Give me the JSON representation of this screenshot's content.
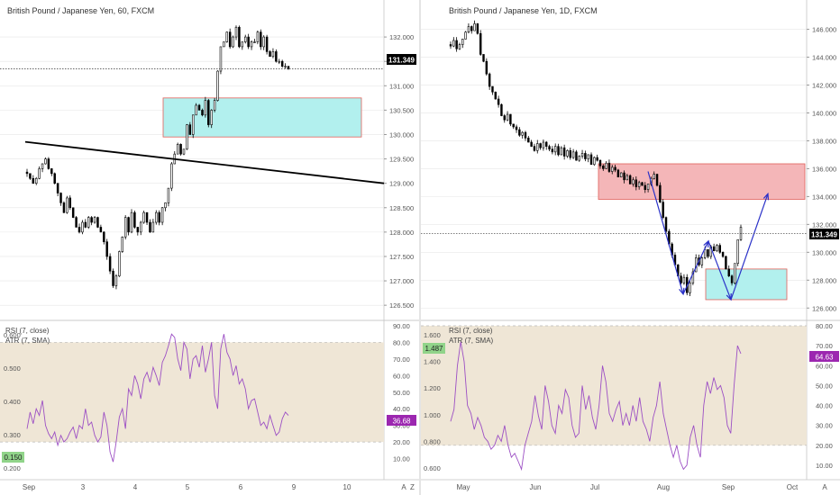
{
  "colors": {
    "candle_up": "#ffffff",
    "candle_down": "#000000",
    "candle_edge": "#000000",
    "teal_zone": "#b2f0ee",
    "teal_edge": "#e0605a",
    "red_zone": "#f4b6b8",
    "red_edge": "#e0605a",
    "rsi_line": "#9c4fc4",
    "rsi_band": "#efe6d6",
    "rsi_band_line": "#b9b9b9",
    "trendline": "#000000",
    "arrow": "#2a31c8",
    "price_tag_bg": "#000000",
    "rsi_tag_bg": "#9c27b0",
    "atr_tag_bg": "#91d48a",
    "axis_text": "#555555",
    "grid": "#e6e6e6"
  },
  "charts": {
    "left": {
      "title": "British Pound / Japanese Yen, 60, FXCM",
      "rsi_legend": "RSI (7, close)",
      "atr_legend": "ATR (7, SMA)",
      "price_tag": "131.349",
      "rsi_tag": "36.68",
      "atr_tag": "0.150",
      "x_labels": [
        "Sep",
        "3",
        "4",
        "5",
        "6",
        "9",
        "10",
        "A"
      ],
      "corner_label": "Z"
    },
    "right": {
      "title": "British Pound / Japanese Yen, 1D, FXCM",
      "rsi_legend": "RSI (7, close)",
      "atr_legend": "ATR (7, SMA)",
      "price_tag": "131.349",
      "rsi_tag": "64.63",
      "atr_tag": "1.487",
      "x_labels": [
        "May",
        "Jun",
        "Jul",
        "Aug",
        "Sep",
        "Oct",
        "A"
      ],
      "corner_label": "Z"
    }
  },
  "chart_data": [
    {
      "type": "candlestick",
      "title": "British Pound / Japanese Yen, 60, FXCM",
      "ylim": [
        126.3,
        132.5
      ],
      "y_ticks": [
        "132.000",
        "131.500",
        "131.000",
        "130.500",
        "130.000",
        "129.500",
        "129.000",
        "128.500",
        "128.000",
        "127.500",
        "127.000",
        "126.500"
      ],
      "close_path": [
        129.2,
        129.1,
        129.0,
        129.1,
        129.3,
        129.4,
        129.5,
        129.3,
        129.2,
        129.0,
        128.8,
        128.6,
        128.4,
        128.7,
        128.5,
        128.3,
        128.1,
        128.0,
        128.2,
        128.1,
        128.3,
        128.2,
        128.3,
        128.1,
        128.0,
        127.8,
        127.5,
        127.2,
        126.9,
        127.1,
        127.6,
        127.9,
        128.3,
        128.0,
        128.4,
        128.1,
        128.0,
        128.2,
        128.4,
        128.2,
        128.0,
        128.2,
        128.4,
        128.2,
        128.5,
        128.6,
        128.9,
        129.4,
        129.6,
        129.8,
        129.6,
        129.7,
        130.2,
        130.0,
        130.4,
        130.6,
        130.5,
        130.4,
        130.7,
        130.2,
        130.5,
        130.7,
        131.3,
        131.8,
        131.9,
        132.1,
        131.8,
        132.0,
        132.2,
        131.8,
        131.9,
        132.0,
        131.8,
        131.9,
        131.9,
        132.1,
        131.8,
        132.0,
        131.7,
        131.6,
        131.7,
        131.5,
        131.5,
        131.4,
        131.4,
        131.35
      ],
      "price_line": 131.349,
      "demand_zone": [
        129.95,
        130.75
      ],
      "trendline": [
        [
          0,
          129.85
        ],
        [
          1,
          129.0
        ]
      ],
      "rsi": {
        "ylim": [
          0,
          90
        ],
        "band": [
          20,
          80
        ],
        "values": [
          28,
          38,
          31,
          40,
          36,
          45,
          30,
          25,
          22,
          26,
          18,
          24,
          20,
          22,
          26,
          29,
          22,
          30,
          28,
          40,
          30,
          32,
          24,
          20,
          23,
          38,
          30,
          14,
          8,
          20,
          35,
          40,
          28,
          52,
          48,
          60,
          55,
          46,
          58,
          62,
          56,
          65,
          60,
          54,
          68,
          72,
          78,
          85,
          83,
          70,
          63,
          80,
          76,
          58,
          70,
          72,
          65,
          78,
          62,
          70,
          80,
          48,
          40,
          76,
          85,
          74,
          70,
          60,
          66,
          55,
          58,
          52,
          40,
          45,
          46,
          38,
          30,
          32,
          28,
          36,
          30,
          24,
          26,
          34,
          38,
          36
        ],
        "y_ticks": [
          "90.00",
          "80.00",
          "70.00",
          "60.00",
          "50.00",
          "40.00",
          "30.00",
          "20.00",
          "10.00"
        ],
        "atr_ticks": [
          "0.600",
          "0.500",
          "0.400",
          "0.300",
          "0.200"
        ]
      }
    },
    {
      "type": "candlestick",
      "title": "British Pound / Japanese Yen, 1D, FXCM",
      "ylim": [
        125.5,
        147.2
      ],
      "y_ticks": [
        "146.000",
        "144.000",
        "142.000",
        "140.000",
        "138.000",
        "136.000",
        "134.000",
        "132.000",
        "130.000",
        "128.000",
        "126.000"
      ],
      "close_path": [
        144.8,
        145.2,
        144.6,
        144.9,
        145.3,
        145.8,
        146.2,
        145.9,
        146.4,
        145.7,
        144.2,
        143.7,
        142.8,
        141.9,
        141.5,
        141.0,
        140.6,
        139.8,
        139.5,
        139.9,
        139.2,
        139.0,
        138.8,
        138.4,
        138.6,
        138.2,
        137.9,
        137.6,
        137.3,
        137.8,
        137.5,
        137.9,
        137.6,
        137.4,
        137.2,
        137.6,
        137.0,
        137.5,
        136.9,
        137.3,
        136.8,
        137.2,
        136.6,
        136.9,
        137.1,
        136.7,
        137.0,
        136.3,
        136.8,
        136.6,
        136.2,
        136.0,
        136.4,
        135.8,
        136.1,
        135.9,
        135.4,
        135.7,
        135.2,
        135.5,
        134.9,
        135.2,
        134.7,
        135.0,
        134.8,
        134.5,
        134.9,
        135.3,
        135.6,
        134.8,
        133.6,
        132.5,
        131.5,
        130.6,
        129.8,
        129.1,
        128.3,
        127.8,
        128.2,
        127.1,
        127.8,
        128.6,
        129.6,
        129.1,
        129.6,
        130.2,
        129.7,
        130.4,
        130.1,
        130.5,
        130.0,
        129.7,
        128.8,
        128.3,
        127.8,
        129.2,
        130.9,
        131.8
      ],
      "price_line": 131.349,
      "supply_zone": [
        133.8,
        136.35
      ],
      "demand_zone": [
        126.6,
        128.8
      ],
      "arrows": [
        [
          [
            0,
            135.8
          ],
          [
            1,
            127.0
          ]
        ],
        [
          [
            1,
            127.0
          ],
          [
            2,
            130.8
          ]
        ],
        [
          [
            2,
            130.8
          ],
          [
            3,
            126.6
          ]
        ],
        [
          [
            3,
            126.6
          ],
          [
            4,
            134.2
          ]
        ]
      ],
      "rsi": {
        "ylim": [
          5,
          80
        ],
        "band": [
          20,
          80
        ],
        "values": [
          32,
          38,
          60,
          72,
          62,
          40,
          36,
          28,
          34,
          30,
          24,
          22,
          18,
          20,
          25,
          22,
          30,
          20,
          14,
          16,
          12,
          8,
          20,
          26,
          32,
          45,
          35,
          28,
          50,
          42,
          30,
          26,
          40,
          36,
          48,
          44,
          30,
          24,
          26,
          50,
          38,
          45,
          34,
          28,
          40,
          60,
          52,
          36,
          32,
          38,
          42,
          30,
          36,
          30,
          40,
          32,
          44,
          32,
          28,
          22,
          34,
          40,
          52,
          36,
          28,
          20,
          14,
          20,
          12,
          8,
          10,
          24,
          30,
          20,
          14,
          40,
          52,
          46,
          54,
          48,
          50,
          44,
          30,
          26,
          50,
          70,
          66
        ],
        "y_ticks": [
          "80.00",
          "70.00",
          "60.00",
          "50.00",
          "40.00",
          "30.00",
          "20.00",
          "10.00"
        ],
        "atr_ticks": [
          "1.600",
          "1.400",
          "1.200",
          "1.000",
          "0.800",
          "0.600"
        ]
      }
    }
  ]
}
